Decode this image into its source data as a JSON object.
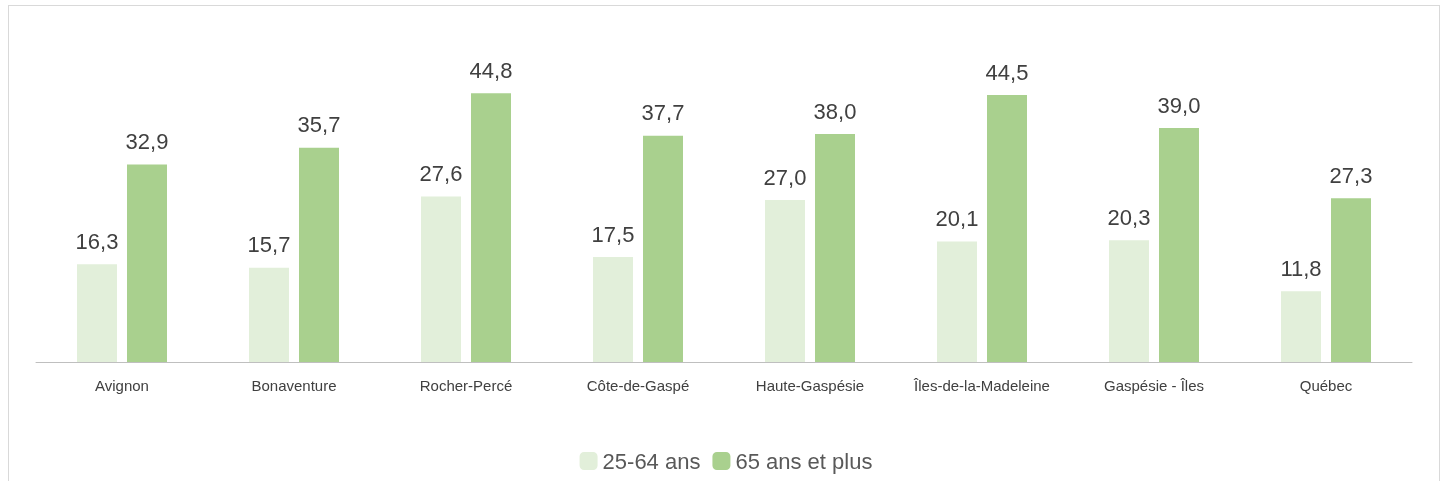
{
  "chart_data": {
    "type": "bar",
    "categories": [
      "Avignon",
      "Bonaventure",
      "Rocher-Percé",
      "Côte-de-Gaspé",
      "Haute-Gaspésie",
      "Îles-de-la-Madeleine",
      "Gaspésie - Îles",
      "Québec"
    ],
    "series": [
      {
        "name": "25-64 ans",
        "color": "#e2efda",
        "values": [
          16.3,
          15.7,
          27.6,
          17.5,
          27.0,
          20.1,
          20.3,
          11.8
        ],
        "value_labels": [
          "16,3",
          "15,7",
          "27,6",
          "17,5",
          "27,0",
          "20,1",
          "20,3",
          "11,8"
        ]
      },
      {
        "name": "65 ans et plus",
        "color": "#a9d08e",
        "values": [
          32.9,
          35.7,
          44.8,
          37.7,
          38.0,
          44.5,
          39.0,
          27.3
        ],
        "value_labels": [
          "32,9",
          "35,7",
          "44,8",
          "37,7",
          "38,0",
          "44,5",
          "39,0",
          "27,3"
        ]
      }
    ],
    "legend": "bottom",
    "tick_labels": "x"
  }
}
